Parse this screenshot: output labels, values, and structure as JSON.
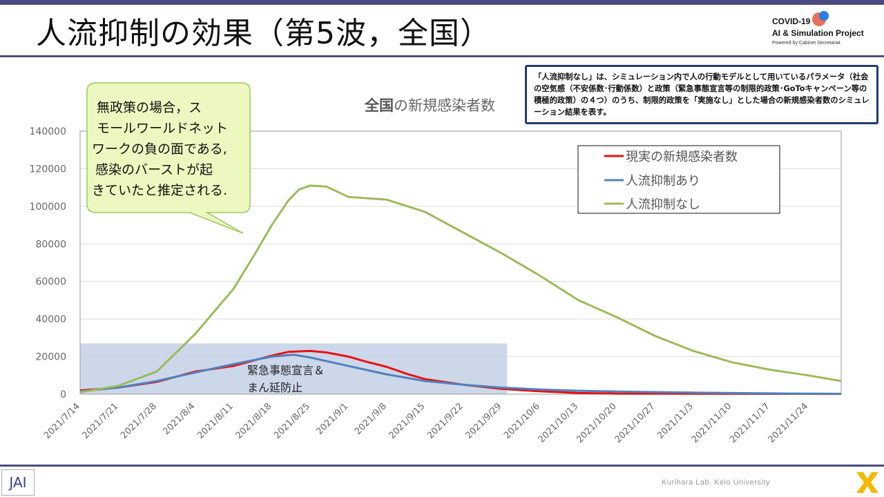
{
  "header": {
    "title": "人流抑制の効果（第5波，全国）",
    "logo_line1": "COVID-19",
    "logo_line2": "AI & Simulation Project",
    "logo_line3": "Powered by Cabinet Secretariat"
  },
  "note": "「人流抑制なし」は、シミュレーション内で人の行動モデルとして用いているパラメータ（社会の空気感（不安係数･行動係数）と政策（緊急事態宣言等の制限的政策･GoToキャンペーン等の積極的政策）の４つ）のうち、制限的政策を「実施なし」とした場合の新規感染者数のシミュレーション結果を表す。",
  "chart_title_bold": "全国",
  "chart_title_rest": "の新規感染者数",
  "callout": {
    "lines": [
      "無政策の場合，ス",
      "モールワールドネット",
      "ワークの負の面である,",
      "感染のバーストが起",
      "きていたと推定される."
    ]
  },
  "band_label": [
    "緊急事態宣言＆",
    "まん延防止"
  ],
  "footer": {
    "lab": "Kurihara Lab. Keio University",
    "left_logo": "JAI"
  },
  "colors": {
    "real": "#e81010",
    "with": "#4f81bd",
    "without": "#9bbb59",
    "band": "#c6d3e8",
    "callout_fill": "#ecf8c0",
    "callout_border": "#9bc95a"
  },
  "chart_data": {
    "type": "line",
    "title": "全国の新規感染者数",
    "ylim": [
      0,
      140000
    ],
    "yticks": [
      0,
      20000,
      40000,
      60000,
      80000,
      100000,
      120000,
      140000
    ],
    "x_start": "2021/7/14",
    "x_end": "2021/11/30",
    "xtick_labels": [
      "2021/7/14",
      "2021/7/21",
      "2021/7/28",
      "2021/8/4",
      "2021/8/11",
      "2021/8/18",
      "2021/8/25",
      "2021/9/1",
      "2021/9/8",
      "2021/9/15",
      "2021/9/22",
      "2021/9/29",
      "2021/10/6",
      "2021/10/13",
      "2021/10/20",
      "2021/10/27",
      "2021/11/3",
      "2021/11/10",
      "2021/11/17",
      "2021/11/24"
    ],
    "grid": true,
    "legend_position": "top-right",
    "shaded_region": {
      "label": "緊急事態宣言＆まん延防止",
      "x_start": "2021/7/14",
      "x_end": "2021/9/30",
      "y_max": 27000
    },
    "series": [
      {
        "name": "現実の新規感染者数",
        "color_key": "real",
        "x": [
          "2021/7/14",
          "2021/7/21",
          "2021/7/28",
          "2021/8/4",
          "2021/8/11",
          "2021/8/18",
          "2021/8/21",
          "2021/8/25",
          "2021/8/28",
          "2021/9/1",
          "2021/9/4",
          "2021/9/8",
          "2021/9/12",
          "2021/9/15",
          "2021/9/22",
          "2021/9/29",
          "2021/10/6",
          "2021/10/13",
          "2021/10/20",
          "2021/11/30"
        ],
        "y": [
          2000,
          3500,
          6500,
          12000,
          15000,
          20500,
          22500,
          23000,
          22200,
          20000,
          17500,
          14500,
          10500,
          8000,
          5000,
          2800,
          1500,
          600,
          300,
          150
        ]
      },
      {
        "name": "人流抑制あり",
        "color_key": "with",
        "x": [
          "2021/7/14",
          "2021/7/21",
          "2021/7/28",
          "2021/8/4",
          "2021/8/11",
          "2021/8/18",
          "2021/8/22",
          "2021/8/25",
          "2021/9/1",
          "2021/9/8",
          "2021/9/15",
          "2021/9/22",
          "2021/9/29",
          "2021/10/6",
          "2021/10/13",
          "2021/10/20",
          "2021/10/27",
          "2021/11/3",
          "2021/11/10",
          "2021/11/17",
          "2021/11/30"
        ],
        "y": [
          1500,
          3500,
          7000,
          11500,
          16000,
          20000,
          21000,
          19500,
          15000,
          10500,
          7000,
          5000,
          3500,
          2500,
          1800,
          1400,
          1100,
          800,
          600,
          400,
          200
        ]
      },
      {
        "name": "人流抑制なし",
        "color_key": "without",
        "x": [
          "2021/7/14",
          "2021/7/21",
          "2021/7/28",
          "2021/8/4",
          "2021/8/11",
          "2021/8/15",
          "2021/8/18",
          "2021/8/21",
          "2021/8/23",
          "2021/8/25",
          "2021/8/28",
          "2021/9/1",
          "2021/9/8",
          "2021/9/15",
          "2021/9/22",
          "2021/9/29",
          "2021/10/6",
          "2021/10/13",
          "2021/10/20",
          "2021/10/27",
          "2021/11/3",
          "2021/11/10",
          "2021/11/17",
          "2021/11/24",
          "2021/11/30"
        ],
        "y": [
          1000,
          4500,
          12000,
          32000,
          56000,
          75000,
          90000,
          103000,
          109000,
          111000,
          110500,
          105000,
          103500,
          97000,
          86000,
          75000,
          63000,
          50000,
          41000,
          31000,
          23000,
          17000,
          13000,
          10000,
          7000
        ]
      }
    ]
  }
}
